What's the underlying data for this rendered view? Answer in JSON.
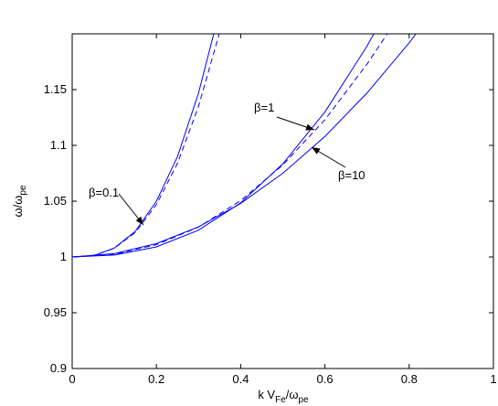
{
  "chart_data": {
    "type": "line",
    "xlabel": [
      "k V",
      "Fe",
      "/ω",
      "pe"
    ],
    "ylabel": [
      "ω/ω",
      "pe"
    ],
    "xlim": [
      0,
      1
    ],
    "ylim": [
      0.9,
      1.2
    ],
    "xticks": [
      0,
      0.2,
      0.4,
      0.6,
      0.8,
      1
    ],
    "yticks": [
      0.9,
      0.95,
      1,
      1.05,
      1.1,
      1.15
    ],
    "annotations": [
      "β=0.1",
      "β=1",
      "β=10"
    ],
    "series": [
      {
        "color": "#0000ff",
        "dash": false,
        "x": [
          0,
          0.05,
          0.1,
          0.15,
          0.2,
          0.25,
          0.3,
          0.336
        ],
        "values": [
          1,
          1.001,
          1.008,
          1.023,
          1.05,
          1.09,
          1.147,
          1.2
        ]
      },
      {
        "color": "#0000ff",
        "dash": true,
        "x": [
          0,
          0.05,
          0.1,
          0.15,
          0.2,
          0.25,
          0.3,
          0.349
        ],
        "values": [
          1,
          1.0013,
          1.0078,
          1.022,
          1.047,
          1.084,
          1.135,
          1.2
        ]
      },
      {
        "color": "#0000ff",
        "dash": false,
        "x": [
          0,
          0.1,
          0.2,
          0.3,
          0.4,
          0.5,
          0.6,
          0.7,
          0.716
        ],
        "values": [
          1,
          1.0017,
          1.009,
          1.024,
          1.0485,
          1.0835,
          1.13,
          1.189,
          1.2
        ]
      },
      {
        "color": "#0000ff",
        "dash": true,
        "x": [
          0,
          0.1,
          0.2,
          0.3,
          0.4,
          0.5,
          0.6,
          0.7,
          0.748
        ],
        "values": [
          1,
          1.0024,
          1.011,
          1.0268,
          1.0505,
          1.0825,
          1.123,
          1.173,
          1.2
        ]
      },
      {
        "color": "#0000ff",
        "dash": false,
        "x": [
          0,
          0.1,
          0.2,
          0.3,
          0.4,
          0.5,
          0.6,
          0.7,
          0.8,
          0.816
        ],
        "values": [
          1,
          1.003,
          1.012,
          1.027,
          1.048,
          1.075,
          1.108,
          1.147,
          1.192,
          1.2
        ]
      }
    ]
  }
}
